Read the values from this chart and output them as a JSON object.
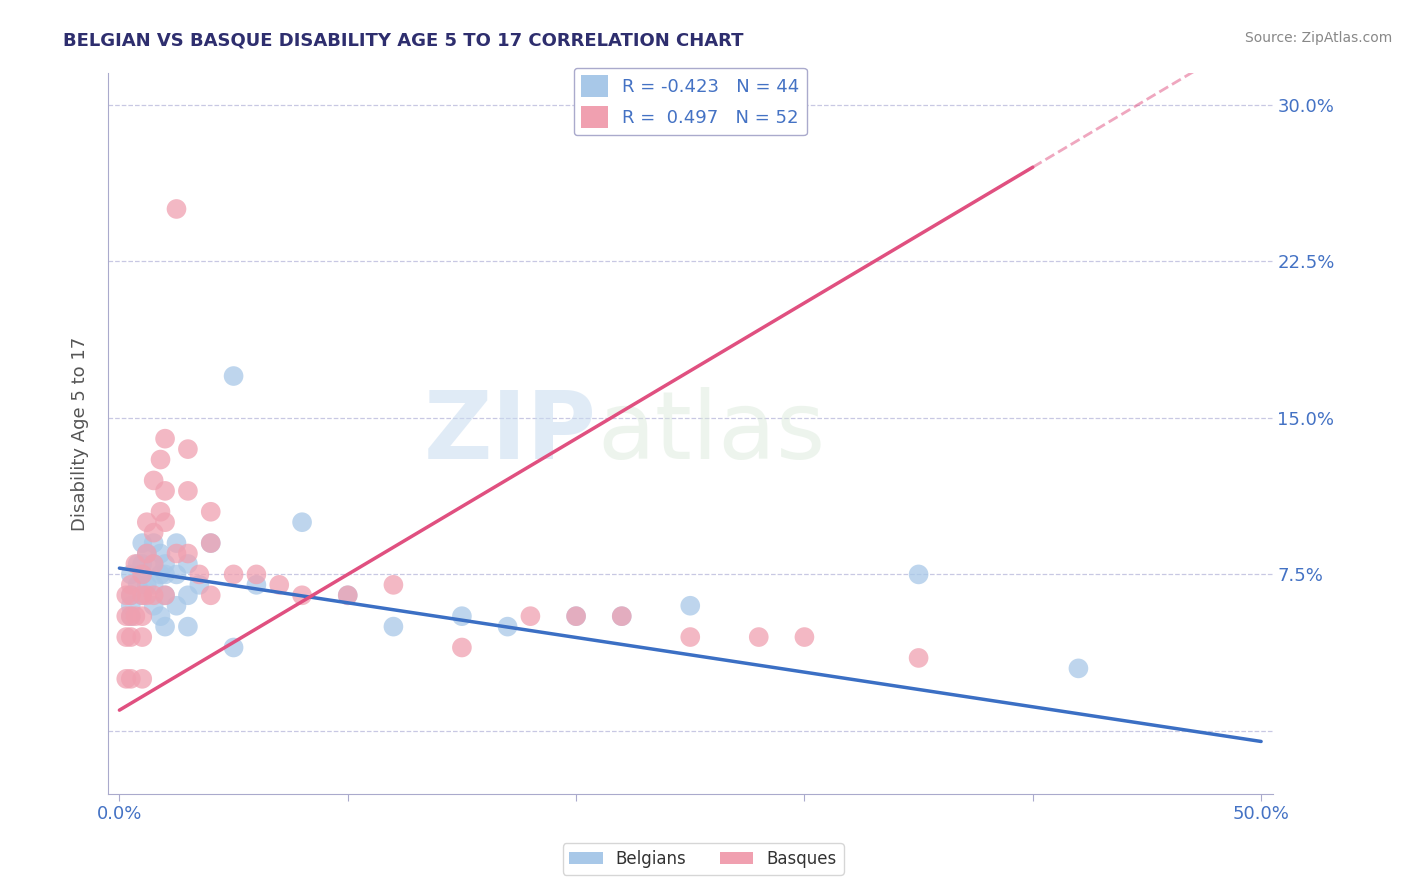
{
  "title": "BELGIAN VS BASQUE DISABILITY AGE 5 TO 17 CORRELATION CHART",
  "source": "Source: ZipAtlas.com",
  "xlabel": "",
  "ylabel": "Disability Age 5 to 17",
  "xlim": [
    -0.005,
    0.505
  ],
  "ylim": [
    -0.03,
    0.315
  ],
  "x_ticks": [
    0.0,
    0.1,
    0.2,
    0.3,
    0.4,
    0.5
  ],
  "x_tick_labels": [
    "0.0%",
    "",
    "",
    "",
    "",
    "50.0%"
  ],
  "y_ticks": [
    0.0,
    0.075,
    0.15,
    0.225,
    0.3
  ],
  "y_tick_labels": [
    "",
    "7.5%",
    "15.0%",
    "22.5%",
    "30.0%"
  ],
  "legend_r_belgian": "-0.423",
  "legend_n_belgian": "44",
  "legend_r_basque": " 0.497",
  "legend_n_basque": "52",
  "belgian_color": "#A8C8E8",
  "basque_color": "#F0A0B0",
  "belgian_line_color": "#3B6FC4",
  "basque_line_color": "#E05080",
  "watermark_zip": "ZIP",
  "watermark_atlas": "atlas",
  "belgian_x": [
    0.005,
    0.005,
    0.005,
    0.005,
    0.008,
    0.008,
    0.01,
    0.01,
    0.01,
    0.01,
    0.012,
    0.012,
    0.015,
    0.015,
    0.015,
    0.015,
    0.018,
    0.018,
    0.018,
    0.02,
    0.02,
    0.02,
    0.02,
    0.025,
    0.025,
    0.025,
    0.03,
    0.03,
    0.03,
    0.035,
    0.04,
    0.05,
    0.05,
    0.06,
    0.08,
    0.1,
    0.12,
    0.15,
    0.17,
    0.2,
    0.22,
    0.25,
    0.35,
    0.42
  ],
  "belgian_y": [
    0.075,
    0.065,
    0.06,
    0.055,
    0.08,
    0.07,
    0.09,
    0.08,
    0.075,
    0.065,
    0.085,
    0.07,
    0.09,
    0.08,
    0.07,
    0.06,
    0.085,
    0.075,
    0.055,
    0.08,
    0.075,
    0.065,
    0.05,
    0.09,
    0.075,
    0.06,
    0.08,
    0.065,
    0.05,
    0.07,
    0.09,
    0.17,
    0.04,
    0.07,
    0.1,
    0.065,
    0.05,
    0.055,
    0.05,
    0.055,
    0.055,
    0.06,
    0.075,
    0.03
  ],
  "basque_x": [
    0.003,
    0.003,
    0.003,
    0.003,
    0.005,
    0.005,
    0.005,
    0.005,
    0.005,
    0.007,
    0.007,
    0.01,
    0.01,
    0.01,
    0.01,
    0.01,
    0.012,
    0.012,
    0.012,
    0.015,
    0.015,
    0.015,
    0.015,
    0.018,
    0.018,
    0.02,
    0.02,
    0.02,
    0.02,
    0.025,
    0.025,
    0.03,
    0.03,
    0.03,
    0.035,
    0.04,
    0.04,
    0.04,
    0.05,
    0.06,
    0.07,
    0.08,
    0.1,
    0.12,
    0.15,
    0.18,
    0.2,
    0.22,
    0.25,
    0.28,
    0.3,
    0.35
  ],
  "basque_y": [
    0.065,
    0.055,
    0.045,
    0.025,
    0.07,
    0.065,
    0.055,
    0.045,
    0.025,
    0.08,
    0.055,
    0.075,
    0.065,
    0.055,
    0.045,
    0.025,
    0.1,
    0.085,
    0.065,
    0.12,
    0.095,
    0.08,
    0.065,
    0.13,
    0.105,
    0.14,
    0.115,
    0.1,
    0.065,
    0.25,
    0.085,
    0.135,
    0.115,
    0.085,
    0.075,
    0.105,
    0.09,
    0.065,
    0.075,
    0.075,
    0.07,
    0.065,
    0.065,
    0.07,
    0.04,
    0.055,
    0.055,
    0.055,
    0.045,
    0.045,
    0.045,
    0.035
  ],
  "bel_line_x0": 0.0,
  "bel_line_x1": 0.5,
  "bel_line_y0": 0.078,
  "bel_line_y1": -0.005,
  "bas_line_x0": 0.0,
  "bas_line_x1": 0.4,
  "bas_line_y0": 0.01,
  "bas_line_y1": 0.27
}
